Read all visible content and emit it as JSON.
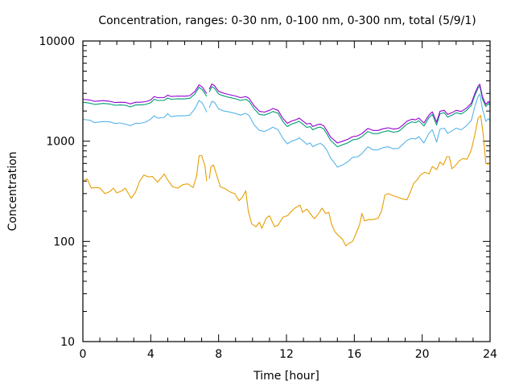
{
  "chart_data": {
    "type": "line",
    "title": "Concentration, ranges: 0-30 nm, 0-100 nm, 0-300 nm, total (5/9/1)",
    "xlabel": "Time [hour]",
    "ylabel": "Concentration",
    "xlim": [
      0,
      24
    ],
    "ylim": [
      10,
      10000
    ],
    "yscale": "log",
    "grid": false,
    "legend": "none",
    "x_ticks": [
      0,
      4,
      8,
      12,
      16,
      20,
      24
    ],
    "x_tick_labels": [
      "0",
      "4",
      "8",
      "12",
      "16",
      "20",
      "24"
    ],
    "y_ticks": [
      10,
      100,
      1000,
      10000
    ],
    "y_tick_labels": [
      "10",
      "100",
      "1000",
      "10000"
    ],
    "gap_after_hour": 7.3,
    "series": [
      {
        "name": "0-30 nm",
        "color": "#e69f00",
        "x": [
          0,
          0.25,
          0.5,
          0.8,
          1.0,
          1.3,
          1.6,
          1.8,
          2.0,
          2.3,
          2.5,
          2.85,
          3.1,
          3.35,
          3.6,
          3.85,
          4.1,
          4.4,
          4.8,
          5.0,
          5.3,
          5.6,
          5.9,
          6.2,
          6.5,
          6.7,
          6.85,
          7.0,
          7.2,
          7.3,
          7.45,
          7.55,
          7.7,
          7.9,
          8.1,
          8.4,
          8.7,
          8.95,
          9.2,
          9.4,
          9.6,
          9.75,
          9.95,
          10.2,
          10.4,
          10.55,
          10.8,
          11.0,
          11.3,
          11.5,
          11.8,
          12.05,
          12.3,
          12.5,
          12.8,
          12.95,
          13.2,
          13.5,
          13.65,
          13.85,
          14.1,
          14.3,
          14.5,
          14.65,
          14.85,
          15.05,
          15.3,
          15.5,
          15.65,
          15.9,
          16.1,
          16.3,
          16.45,
          16.6,
          16.85,
          17.1,
          17.4,
          17.6,
          17.8,
          18.0,
          18.3,
          18.6,
          18.85,
          19.1,
          19.3,
          19.5,
          19.7,
          19.9,
          20.15,
          20.4,
          20.6,
          20.85,
          21.05,
          21.25,
          21.45,
          21.6,
          21.75,
          21.95,
          22.2,
          22.4,
          22.65,
          22.9,
          23.1,
          23.3,
          23.45,
          23.6,
          23.75,
          23.9,
          24.0
        ],
        "values": [
          400,
          420,
          340,
          345,
          340,
          300,
          315,
          340,
          305,
          320,
          340,
          270,
          310,
          400,
          460,
          440,
          445,
          390,
          470,
          410,
          350,
          340,
          370,
          375,
          345,
          450,
          715,
          720,
          560,
          400,
          420,
          560,
          580,
          450,
          350,
          335,
          310,
          300,
          255,
          275,
          320,
          200,
          150,
          140,
          155,
          135,
          170,
          180,
          140,
          145,
          175,
          180,
          200,
          215,
          230,
          195,
          210,
          180,
          168,
          185,
          215,
          190,
          195,
          150,
          125,
          115,
          105,
          90,
          95,
          100,
          120,
          145,
          190,
          160,
          165,
          165,
          170,
          200,
          290,
          300,
          285,
          275,
          265,
          260,
          310,
          380,
          410,
          460,
          490,
          470,
          560,
          520,
          620,
          580,
          700,
          700,
          530,
          570,
          640,
          670,
          660,
          820,
          1150,
          1700,
          1800,
          1150,
          600,
          590,
          610
        ]
      },
      {
        "name": "0-100 nm",
        "color": "#56b4e9",
        "x": [
          0,
          0.4,
          0.7,
          1.2,
          1.6,
          1.9,
          2.2,
          2.5,
          2.8,
          3.1,
          3.4,
          3.7,
          4.0,
          4.2,
          4.4,
          4.8,
          5.0,
          5.2,
          5.6,
          6.0,
          6.3,
          6.6,
          6.85,
          7.05,
          7.3,
          7.45,
          7.6,
          7.75,
          8.0,
          8.3,
          8.6,
          9.0,
          9.3,
          9.6,
          9.8,
          10.1,
          10.4,
          10.7,
          11.0,
          11.2,
          11.5,
          11.8,
          12.05,
          12.3,
          12.6,
          12.75,
          13.0,
          13.2,
          13.4,
          13.55,
          13.8,
          14.0,
          14.2,
          14.4,
          14.6,
          14.85,
          15.0,
          15.3,
          15.6,
          15.9,
          16.2,
          16.45,
          16.8,
          17.1,
          17.4,
          17.7,
          18.0,
          18.3,
          18.6,
          18.8,
          19.1,
          19.4,
          19.6,
          19.8,
          20.1,
          20.4,
          20.6,
          20.85,
          21.05,
          21.3,
          21.5,
          21.8,
          22.0,
          22.3,
          22.6,
          22.9,
          23.1,
          23.3,
          23.4,
          23.55,
          23.75,
          23.9,
          24.0
        ],
        "values": [
          1650,
          1620,
          1530,
          1570,
          1560,
          1500,
          1520,
          1480,
          1430,
          1510,
          1510,
          1550,
          1660,
          1790,
          1700,
          1730,
          1880,
          1760,
          1790,
          1790,
          1820,
          2100,
          2550,
          2400,
          1950,
          2150,
          2500,
          2450,
          2100,
          2000,
          1960,
          1890,
          1820,
          1900,
          1800,
          1450,
          1280,
          1250,
          1320,
          1380,
          1300,
          1060,
          940,
          1000,
          1040,
          1080,
          1000,
          930,
          960,
          880,
          930,
          950,
          900,
          800,
          680,
          600,
          550,
          580,
          620,
          690,
          700,
          750,
          880,
          820,
          820,
          860,
          880,
          840,
          850,
          910,
          1020,
          1070,
          1050,
          1110,
          960,
          1200,
          1300,
          980,
          1320,
          1350,
          1200,
          1280,
          1350,
          1300,
          1420,
          1620,
          2200,
          2800,
          2950,
          2100,
          1580,
          1680,
          1600
        ]
      },
      {
        "name": "0-300 nm",
        "color": "#009e73",
        "x": [
          0,
          0.4,
          0.7,
          1.2,
          1.6,
          1.9,
          2.2,
          2.5,
          2.8,
          3.1,
          3.4,
          3.7,
          4.0,
          4.2,
          4.4,
          4.8,
          5.0,
          5.2,
          5.6,
          6.0,
          6.3,
          6.6,
          6.85,
          7.05,
          7.3,
          7.45,
          7.6,
          7.75,
          8.0,
          8.3,
          8.6,
          9.0,
          9.3,
          9.6,
          9.8,
          10.1,
          10.4,
          10.7,
          11.0,
          11.2,
          11.5,
          11.8,
          12.05,
          12.3,
          12.6,
          12.75,
          13.0,
          13.2,
          13.4,
          13.55,
          13.8,
          14.0,
          14.2,
          14.4,
          14.6,
          14.85,
          15.0,
          15.3,
          15.6,
          15.9,
          16.2,
          16.45,
          16.8,
          17.1,
          17.4,
          17.7,
          18.0,
          18.3,
          18.6,
          18.8,
          19.1,
          19.4,
          19.6,
          19.8,
          20.1,
          20.4,
          20.6,
          20.85,
          21.05,
          21.3,
          21.5,
          21.8,
          22.0,
          22.3,
          22.6,
          22.9,
          23.1,
          23.3,
          23.4,
          23.55,
          23.75,
          23.9,
          24.0
        ],
        "values": [
          2450,
          2400,
          2330,
          2380,
          2350,
          2280,
          2300,
          2280,
          2200,
          2300,
          2300,
          2330,
          2420,
          2620,
          2550,
          2560,
          2700,
          2620,
          2650,
          2640,
          2680,
          2950,
          3450,
          3250,
          2800,
          3100,
          3500,
          3380,
          2950,
          2830,
          2740,
          2650,
          2550,
          2620,
          2500,
          2100,
          1850,
          1820,
          1900,
          1980,
          1900,
          1560,
          1400,
          1480,
          1540,
          1580,
          1460,
          1370,
          1400,
          1300,
          1360,
          1380,
          1320,
          1170,
          1020,
          930,
          880,
          920,
          960,
          1030,
          1050,
          1110,
          1250,
          1190,
          1190,
          1240,
          1270,
          1230,
          1250,
          1330,
          1480,
          1560,
          1530,
          1600,
          1420,
          1720,
          1850,
          1450,
          1880,
          1920,
          1740,
          1830,
          1920,
          1870,
          2020,
          2280,
          2850,
          3400,
          3550,
          2650,
          2220,
          2380,
          2280
        ]
      },
      {
        "name": "total",
        "color": "#9400d3",
        "x": [
          0,
          0.4,
          0.7,
          1.2,
          1.6,
          1.9,
          2.2,
          2.5,
          2.8,
          3.1,
          3.4,
          3.7,
          4.0,
          4.2,
          4.4,
          4.8,
          5.0,
          5.2,
          5.6,
          6.0,
          6.3,
          6.6,
          6.85,
          7.05,
          7.3,
          7.45,
          7.6,
          7.75,
          8.0,
          8.3,
          8.6,
          9.0,
          9.3,
          9.6,
          9.8,
          10.1,
          10.4,
          10.7,
          11.0,
          11.2,
          11.5,
          11.8,
          12.05,
          12.3,
          12.6,
          12.75,
          13.0,
          13.2,
          13.4,
          13.55,
          13.8,
          14.0,
          14.2,
          14.4,
          14.6,
          14.85,
          15.0,
          15.3,
          15.6,
          15.9,
          16.2,
          16.45,
          16.8,
          17.1,
          17.4,
          17.7,
          18.0,
          18.3,
          18.6,
          18.8,
          19.1,
          19.4,
          19.6,
          19.8,
          20.1,
          20.4,
          20.6,
          20.85,
          21.05,
          21.3,
          21.5,
          21.8,
          22.0,
          22.3,
          22.6,
          22.9,
          23.1,
          23.3,
          23.4,
          23.55,
          23.75,
          23.9,
          24.0
        ],
        "values": [
          2620,
          2580,
          2500,
          2540,
          2500,
          2430,
          2450,
          2440,
          2360,
          2450,
          2450,
          2480,
          2580,
          2790,
          2720,
          2730,
          2880,
          2790,
          2820,
          2810,
          2850,
          3130,
          3650,
          3450,
          2980,
          3300,
          3720,
          3590,
          3140,
          3010,
          2920,
          2820,
          2720,
          2790,
          2670,
          2250,
          1990,
          1950,
          2030,
          2120,
          2030,
          1680,
          1510,
          1590,
          1650,
          1700,
          1570,
          1480,
          1510,
          1400,
          1460,
          1480,
          1420,
          1260,
          1100,
          1010,
          960,
          1000,
          1040,
          1110,
          1130,
          1190,
          1340,
          1280,
          1280,
          1330,
          1360,
          1320,
          1340,
          1420,
          1580,
          1660,
          1630,
          1700,
          1520,
          1820,
          1960,
          1550,
          1990,
          2030,
          1850,
          1940,
          2030,
          1980,
          2130,
          2400,
          2980,
          3550,
          3700,
          2780,
          2330,
          2490,
          2390
        ]
      }
    ]
  }
}
